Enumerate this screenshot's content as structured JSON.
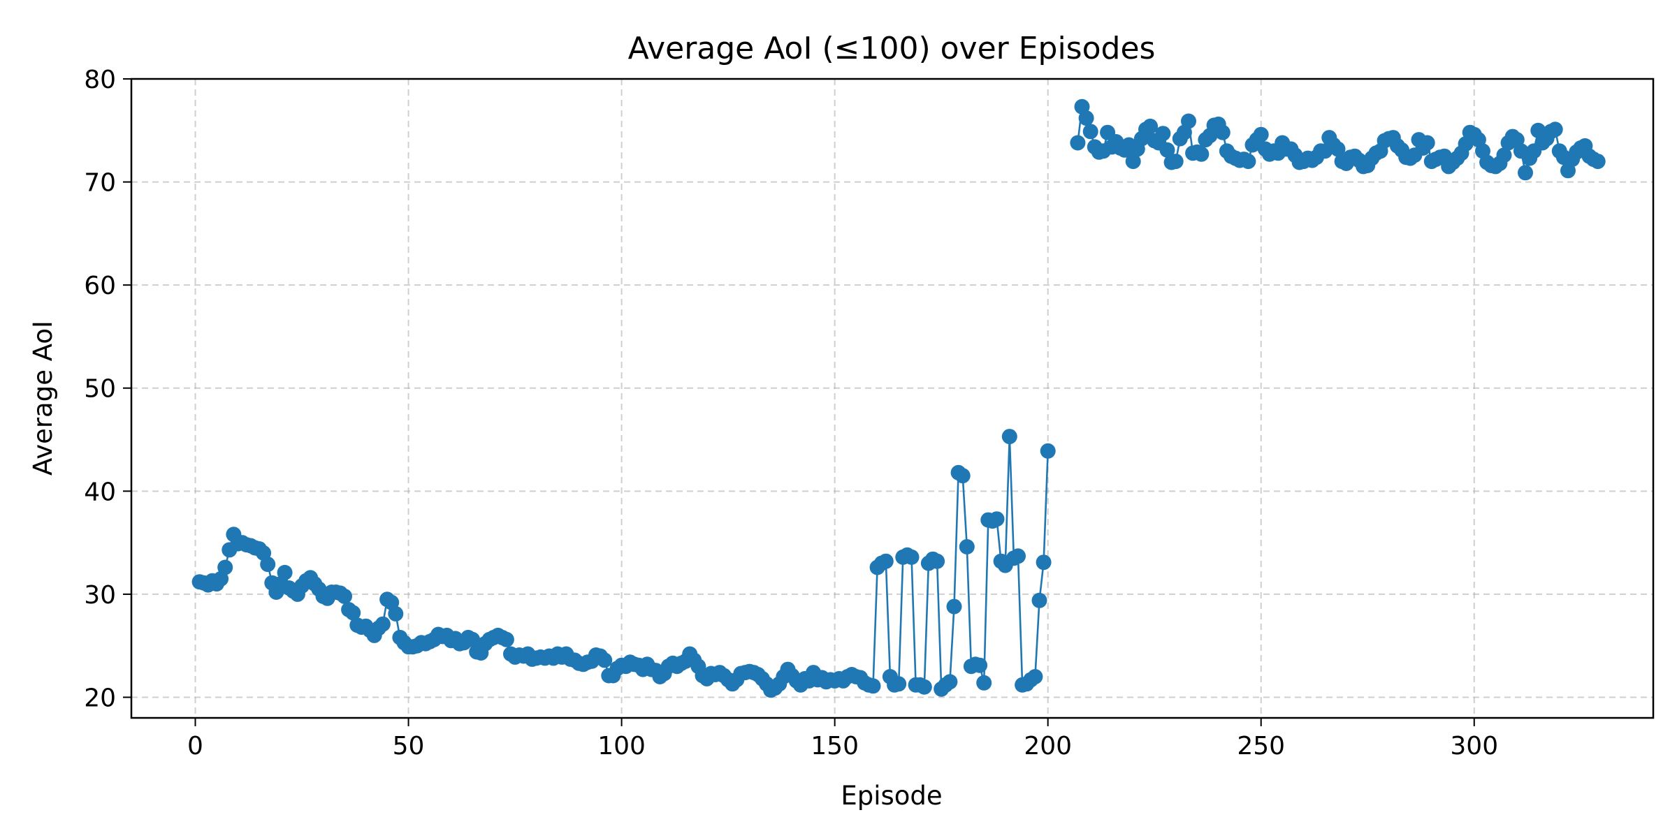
{
  "chart_data": {
    "type": "line",
    "title": "Average AoI (≤100) over Episodes",
    "xlabel": "Episode",
    "ylabel": "Average AoI",
    "xlim": [
      -15,
      342
    ],
    "ylim": [
      18,
      80
    ],
    "xticks": [
      0,
      50,
      100,
      150,
      200,
      250,
      300
    ],
    "yticks": [
      20,
      30,
      40,
      50,
      60,
      70,
      80
    ],
    "grid": true,
    "marker": "circle",
    "series": [
      {
        "color": "#1f77b4",
        "segments": [
          {
            "x_start": 1,
            "values": [
              31.2,
              31.1,
              30.9,
              31.3,
              31.0,
              31.5,
              32.6,
              34.3,
              35.8,
              34.9,
              35.0,
              34.8,
              34.7,
              34.5,
              34.4,
              34.0,
              32.9,
              31.1,
              30.2,
              31.0,
              32.1,
              30.6,
              30.3,
              30.0,
              30.8,
              31.3,
              31.6,
              31.0,
              30.5,
              29.8,
              29.6,
              30.2,
              30.2,
              30.1,
              29.8,
              28.5,
              28.2,
              27.0,
              26.8,
              26.9,
              26.5,
              26.0,
              26.7,
              27.1,
              29.5,
              29.2,
              28.1,
              25.8,
              25.3,
              24.9,
              24.9,
              25.0,
              25.3,
              25.2,
              25.4,
              25.6,
              26.1,
              25.9,
              26.0,
              25.5,
              25.7,
              25.2,
              25.3,
              25.8,
              25.6,
              24.4,
              24.3,
              25.2,
              25.6,
              25.8,
              26.0,
              25.8,
              25.6,
              24.2,
              23.9,
              24.1,
              24.0,
              24.2,
              23.7,
              23.8,
              23.9,
              23.8,
              24.0,
              23.8,
              24.2,
              23.9,
              24.2,
              23.7,
              23.6,
              23.3,
              23.2,
              23.4,
              23.5,
              24.1,
              24.0,
              23.6,
              22.1,
              22.1,
              22.8,
              23.1,
              23.0,
              23.4,
              23.2,
              23.1,
              22.7,
              23.2,
              22.7,
              22.6,
              22.0,
              22.3,
              23.0,
              23.3,
              23.0,
              23.3,
              23.5,
              24.2,
              23.6,
              23.0,
              22.1,
              21.8,
              22.3,
              22.2,
              22.4,
              22.1,
              21.7,
              21.3,
              21.7,
              22.3,
              22.4,
              22.5,
              22.4,
              22.2,
              21.8,
              21.3,
              20.7,
              20.9,
              21.3,
              22.0,
              22.7,
              22.1,
              21.6,
              21.2,
              21.8,
              21.6,
              22.4,
              21.7,
              21.9,
              21.5,
              21.7,
              21.6,
              21.8,
              21.6,
              22.0,
              22.2,
              22.0,
              21.9,
              21.4,
              21.2,
              21.1,
              32.6,
              33.0,
              33.2,
              22.0,
              21.2,
              21.3,
              33.6,
              33.8,
              33.6,
              21.2,
              21.2,
              21.0,
              33.0,
              33.4,
              33.2,
              20.8,
              21.2,
              21.5,
              28.8,
              41.8,
              41.5,
              34.6,
              23.0,
              23.2,
              23.1,
              21.4,
              37.2,
              37.1,
              37.3,
              33.2,
              32.8,
              45.3,
              33.5,
              33.7,
              21.2,
              21.3,
              21.7,
              22.0,
              29.4,
              33.1,
              43.9
            ]
          },
          {
            "x_start": 207,
            "values": [
              73.8,
              77.3,
              76.2,
              74.9,
              73.4,
              72.9,
              73.0,
              74.8,
              73.4,
              73.9,
              73.3,
              73.1,
              73.6,
              72.0,
              73.2,
              74.2,
              75.1,
              75.4,
              74.0,
              73.8,
              74.7,
              73.1,
              71.9,
              72.0,
              74.2,
              74.8,
              75.9,
              72.8,
              72.9,
              72.7,
              74.1,
              74.5,
              75.5,
              75.6,
              74.8,
              73.0,
              72.5,
              72.3,
              72.1,
              72.2,
              72.0,
              73.6,
              74.1,
              74.6,
              73.2,
              72.7,
              73.0,
              72.8,
              73.8,
              73.2,
              73.2,
              72.6,
              71.9,
              72.0,
              72.3,
              72.1,
              72.4,
              73.0,
              73.0,
              74.3,
              73.6,
              73.2,
              72.0,
              71.8,
              72.4,
              72.5,
              72.1,
              71.5,
              71.6,
              72.3,
              72.8,
              73.0,
              74.0,
              74.2,
              74.3,
              73.5,
              73.1,
              72.4,
              72.3,
              72.6,
              74.1,
              73.3,
              73.8,
              72.0,
              72.2,
              72.4,
              72.5,
              71.5,
              71.9,
              72.3,
              72.8,
              73.7,
              74.8,
              74.6,
              74.1,
              73.0,
              71.9,
              71.6,
              71.5,
              71.8,
              72.6,
              73.8,
              74.4,
              74.1,
              73.0,
              70.9,
              72.3,
              73.0,
              75.0,
              73.8,
              74.2,
              74.9,
              75.1,
              73.0,
              72.4,
              71.1,
              72.2,
              72.9,
              73.3,
              73.5,
              72.5,
              72.2,
              72.0
            ]
          }
        ]
      }
    ]
  }
}
